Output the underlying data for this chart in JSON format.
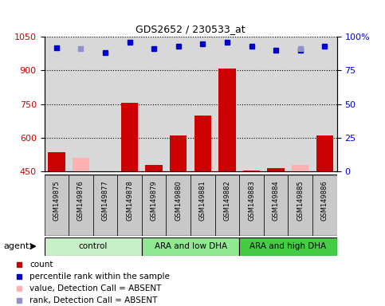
{
  "title": "GDS2652 / 230533_at",
  "categories": [
    "GSM149875",
    "GSM149876",
    "GSM149877",
    "GSM149878",
    "GSM149879",
    "GSM149880",
    "GSM149881",
    "GSM149882",
    "GSM149883",
    "GSM149884",
    "GSM149885",
    "GSM149886"
  ],
  "bar_values": [
    535,
    null,
    450,
    755,
    480,
    610,
    700,
    910,
    455,
    465,
    null,
    610
  ],
  "bar_absent_values": [
    null,
    510,
    null,
    null,
    null,
    null,
    null,
    null,
    null,
    null,
    480,
    null
  ],
  "rank_values": [
    92,
    null,
    88,
    96,
    91,
    93,
    95,
    96,
    93,
    90,
    90,
    93
  ],
  "rank_absent_values": [
    null,
    91,
    null,
    null,
    null,
    null,
    null,
    null,
    null,
    null,
    91,
    null
  ],
  "ylim_left": [
    450,
    1050
  ],
  "ylim_right": [
    0,
    100
  ],
  "yticks_left": [
    450,
    600,
    750,
    900,
    1050
  ],
  "yticks_right": [
    0,
    25,
    50,
    75,
    100
  ],
  "groups": [
    {
      "label": "control",
      "start": 0,
      "end": 3,
      "color": "#c8f0c8"
    },
    {
      "label": "ARA and low DHA",
      "start": 4,
      "end": 7,
      "color": "#90e890"
    },
    {
      "label": "ARA and high DHA",
      "start": 8,
      "end": 11,
      "color": "#44cc44"
    }
  ],
  "bar_color": "#cc0000",
  "bar_absent_color": "#ffb0b0",
  "rank_color": "#0000cc",
  "rank_absent_color": "#9090cc",
  "bg_color": "#d8d8d8",
  "label_box_color": "#c8c8c8",
  "plot_bg": "#ffffff",
  "dotted_line_color": "#000000",
  "ylabel_left_color": "#cc0000",
  "ylabel_right_color": "#0000cc",
  "legend_items": [
    {
      "color": "#cc0000",
      "shape": "s",
      "label": "count"
    },
    {
      "color": "#0000cc",
      "shape": "s",
      "label": "percentile rank within the sample"
    },
    {
      "color": "#ffb0b0",
      "shape": "s",
      "label": "value, Detection Call = ABSENT"
    },
    {
      "color": "#9090cc",
      "shape": "s",
      "label": "rank, Detection Call = ABSENT"
    }
  ]
}
